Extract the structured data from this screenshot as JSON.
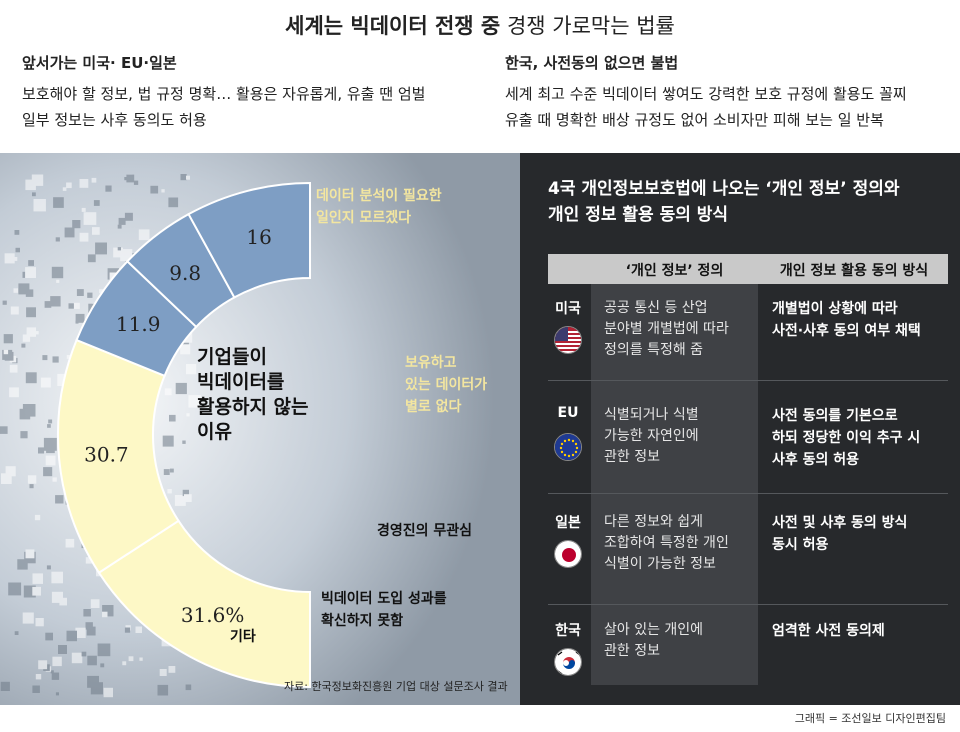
{
  "header": {
    "title_main": "세계는 빅데이터 전쟁 중",
    "title_sub": "경쟁 가로막는 법률"
  },
  "summary": {
    "left": {
      "heading": "앞서가는 미국· EU·일본",
      "lines": [
        "보호해야 할 정보, 법 규정 명확… 활용은 자유롭게, 유출 땐 엄벌",
        "일부 정보는 사후 동의도 허용"
      ]
    },
    "right": {
      "heading": "한국, 사전동의 없으면 불법",
      "lines": [
        "세계 최고 수준 빅데이터 쌓여도 강력한 보호 규정에 활용도 꼴찌",
        "유출 때 명확한 배상 규정도 없어 소비자만 피해 보는 일 반복"
      ]
    }
  },
  "chart_data": {
    "type": "pie",
    "title": "기업들이 빅데이터를 활용하지 않는 이유",
    "title_lines": [
      "기업들이",
      "빅데이터를",
      "활용하지 않는",
      "이유"
    ],
    "categories": [
      "데이터 분석이 필요한 일인지 모르겠다",
      "보유하고 있는 데이터가 별로 없다",
      "경영진의 무관심",
      "빅데이터 도입 성과를 확신하지 못함",
      "기타"
    ],
    "values": [
      31.6,
      30.7,
      11.9,
      9.8,
      16
    ],
    "value_labels": [
      "31.6%",
      "30.7",
      "11.9",
      "9.8",
      "16"
    ],
    "label_lines": [
      [
        "데이터 분석이 필요한",
        "일인지 모르겠다"
      ],
      [
        "보유하고",
        "있는 데이터가",
        "별로 없다"
      ],
      [
        "경영진의 무관심"
      ],
      [
        "빅데이터 도입 성과를",
        "확신하지 못함"
      ],
      [
        "기타"
      ]
    ],
    "colors": [
      "#fdf8c6",
      "#fdf8c6",
      "#7e9ec4",
      "#7e9ec4",
      "#7e9ec4"
    ],
    "source": "자료: 한국정보화진흥원 기업 대상 설문조사 결과"
  },
  "table": {
    "title_lines": [
      "4국 개인정보보호법에 나오는 ‘개인 정보’ 정의와",
      "개인 정보 활용 동의 방식"
    ],
    "headers": [
      "‘개인 정보’ 정의",
      "개인 정보 활용 동의 방식"
    ],
    "rows": [
      {
        "country": "미국",
        "flag": "us-flag-icon",
        "definition": [
          "공공 통신 등 산업",
          "분야별 개별법에 따라",
          "정의를 특정해 줌"
        ],
        "consent": [
          "개별법이 상황에 따라",
          "사전·사후 동의 여부 채택"
        ]
      },
      {
        "country": "EU",
        "flag": "eu-flag-icon",
        "definition": [
          "식별되거나 식별",
          "가능한 자연인에",
          "관한 정보"
        ],
        "consent": [
          "사전 동의를 기본으로",
          "하되 정당한 이익 추구 시",
          "사후 동의 허용"
        ]
      },
      {
        "country": "일본",
        "flag": "japan-flag-icon",
        "definition": [
          "다른 정보와 쉽게",
          "조합하여 특정한 개인",
          "식별이 가능한 정보"
        ],
        "consent": [
          "사전 및 사후 동의 방식",
          "동시 허용"
        ]
      },
      {
        "country": "한국",
        "flag": "korea-flag-icon",
        "definition": [
          "살아 있는 개인에",
          "관한 정보"
        ],
        "consent": [
          "엄격한 사전 동의제"
        ]
      }
    ]
  },
  "credit": "그래픽 = 조선일보 디자인편집팀"
}
